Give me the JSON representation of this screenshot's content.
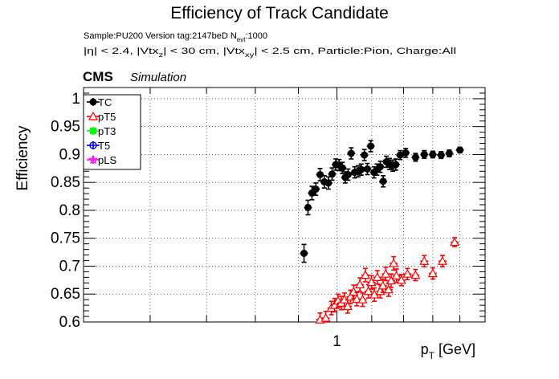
{
  "chart_data": {
    "type": "scatter",
    "title": "Efficiency of Track Candidate",
    "subtitle_line1": {
      "prefix": "Sample:PU200   Version tag:2147beD  N",
      "sub": "evt",
      "suffix": ":1000"
    },
    "subtitle_line2": {
      "p1": "|η| < 2.4, |Vtx",
      "s1": "z",
      "p2": "| < 30 cm, |Vtx",
      "s2": "xy",
      "p3": "| < 2.5 cm, Particle:Pion, Charge:All"
    },
    "cms_label": "CMS",
    "simulation_label": "Simulation",
    "xlabel": {
      "main": "p",
      "sub": "T",
      "unit": " [GeV]"
    },
    "ylabel": "Efficiency",
    "x_scale": "log",
    "xlim": [
      0.5,
      1.5
    ],
    "ylim": [
      0.6,
      1.02
    ],
    "grid": true,
    "legend_position": "top-left",
    "x_tick_labels": [
      {
        "value": 1,
        "label": "1"
      }
    ],
    "y_tick_labels": [
      {
        "value": 0.6,
        "label": "0.6"
      },
      {
        "value": 0.65,
        "label": "0.65"
      },
      {
        "value": 0.7,
        "label": "0.7"
      },
      {
        "value": 0.75,
        "label": "0.75"
      },
      {
        "value": 0.8,
        "label": "0.8"
      },
      {
        "value": 0.85,
        "label": "0.85"
      },
      {
        "value": 0.9,
        "label": "0.9"
      },
      {
        "value": 0.95,
        "label": "0.95"
      },
      {
        "value": 1.0,
        "label": "1"
      }
    ],
    "series": [
      {
        "name": "TC",
        "color": "#000000",
        "marker": "filled-circle",
        "points": [
          [
            0.914,
            0.723,
            0.016
          ],
          [
            0.924,
            0.805,
            0.013
          ],
          [
            0.934,
            0.831,
            0.012
          ],
          [
            0.944,
            0.838,
            0.011
          ],
          [
            0.955,
            0.864,
            0.011
          ],
          [
            0.966,
            0.851,
            0.011
          ],
          [
            0.977,
            0.849,
            0.011
          ],
          [
            0.987,
            0.865,
            0.011
          ],
          [
            0.997,
            0.882,
            0.01
          ],
          [
            1.006,
            0.881,
            0.01
          ],
          [
            1.015,
            0.876,
            0.01
          ],
          [
            1.023,
            0.859,
            0.01
          ],
          [
            1.031,
            0.864,
            0.01
          ],
          [
            1.04,
            0.902,
            0.01
          ],
          [
            1.05,
            0.868,
            0.01
          ],
          [
            1.06,
            0.87,
            0.01
          ],
          [
            1.069,
            0.873,
            0.01
          ],
          [
            1.078,
            0.899,
            0.01
          ],
          [
            1.087,
            0.874,
            0.01
          ],
          [
            1.097,
            0.915,
            0.01
          ],
          [
            1.107,
            0.868,
            0.01
          ],
          [
            1.116,
            0.873,
            0.01
          ],
          [
            1.126,
            0.878,
            0.01
          ],
          [
            1.135,
            0.852,
            0.01
          ],
          [
            1.145,
            0.887,
            0.01
          ],
          [
            1.155,
            0.883,
            0.01
          ],
          [
            1.165,
            0.88,
            0.01
          ],
          [
            1.175,
            0.882,
            0.01
          ],
          [
            1.189,
            0.899,
            0.008
          ],
          [
            1.207,
            0.903,
            0.008
          ],
          [
            1.24,
            0.895,
            0.007
          ],
          [
            1.27,
            0.9,
            0.007
          ],
          [
            1.3,
            0.9,
            0.006
          ],
          [
            1.33,
            0.899,
            0.006
          ],
          [
            1.36,
            0.902,
            0.006
          ],
          [
            1.4,
            0.908,
            0.005
          ]
        ]
      },
      {
        "name": "pT5",
        "color": "#ff0000",
        "marker": "open-triangle",
        "points": [
          [
            0.955,
            0.604,
            0.012
          ],
          [
            0.97,
            0.607,
            0.012
          ],
          [
            0.985,
            0.625,
            0.012
          ],
          [
            0.994,
            0.63,
            0.012
          ],
          [
            1.003,
            0.638,
            0.012
          ],
          [
            1.012,
            0.634,
            0.012
          ],
          [
            1.021,
            0.64,
            0.012
          ],
          [
            1.03,
            0.628,
            0.012
          ],
          [
            1.038,
            0.645,
            0.012
          ],
          [
            1.047,
            0.654,
            0.012
          ],
          [
            1.056,
            0.641,
            0.012
          ],
          [
            1.065,
            0.667,
            0.012
          ],
          [
            1.073,
            0.64,
            0.012
          ],
          [
            1.081,
            0.684,
            0.012
          ],
          [
            1.09,
            0.655,
            0.012
          ],
          [
            1.099,
            0.671,
            0.012
          ],
          [
            1.108,
            0.649,
            0.012
          ],
          [
            1.117,
            0.68,
            0.012
          ],
          [
            1.126,
            0.655,
            0.012
          ],
          [
            1.134,
            0.665,
            0.012
          ],
          [
            1.143,
            0.686,
            0.012
          ],
          [
            1.152,
            0.658,
            0.012
          ],
          [
            1.16,
            0.674,
            0.012
          ],
          [
            1.168,
            0.705,
            0.012
          ],
          [
            1.177,
            0.683,
            0.012
          ],
          [
            1.193,
            0.675,
            0.01
          ],
          [
            1.213,
            0.686,
            0.01
          ],
          [
            1.24,
            0.684,
            0.01
          ],
          [
            1.27,
            0.709,
            0.01
          ],
          [
            1.3,
            0.687,
            0.01
          ],
          [
            1.335,
            0.709,
            0.01
          ],
          [
            1.38,
            0.743,
            0.008
          ]
        ]
      },
      {
        "name": "pT3",
        "color": "#00ff00",
        "marker": "filled-square",
        "points": []
      },
      {
        "name": "T5",
        "color": "#0000ff",
        "marker": "open-circle",
        "points": []
      },
      {
        "name": "pLS",
        "color": "#ff00ff",
        "marker": "open-star",
        "points": []
      }
    ]
  }
}
